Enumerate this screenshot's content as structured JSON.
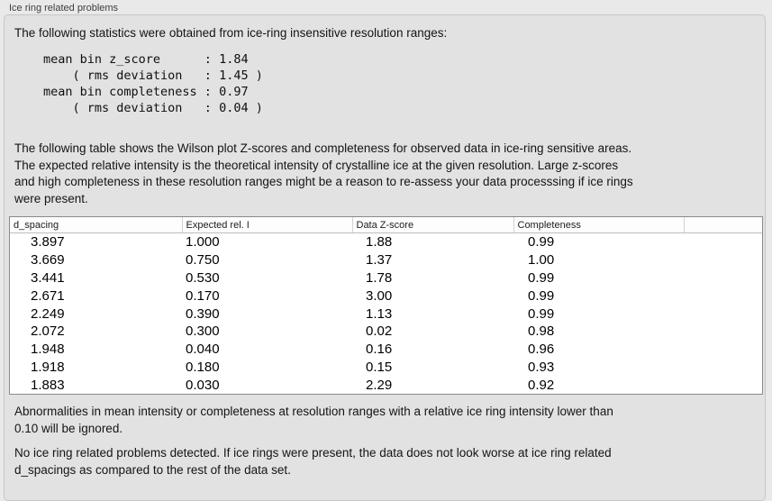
{
  "panel": {
    "title": "Ice ring related problems"
  },
  "intro_text": "The following statistics were obtained from ice-ring insensitive resolution ranges:",
  "stats_block": "mean bin z_score      : 1.84\n    ( rms deviation   : 1.45 )\nmean bin completeness : 0.97\n    ( rms deviation   : 0.04 )",
  "stats": {
    "mean_bin_z_score": "1.84",
    "z_score_rms_deviation": "1.45",
    "mean_bin_completeness": "0.97",
    "completeness_rms_deviation": "0.04"
  },
  "table_description": "The following table shows the Wilson plot Z-scores and completeness for observed data in ice-ring sensitive areas.\nThe expected relative intensity is the theoretical intensity of crystalline ice at the given resolution. Large z-scores\nand high completeness in these resolution ranges might be a reason to re-assess your data processsing if ice rings\nwere present.",
  "table": {
    "columns": [
      "d_spacing",
      "Expected rel. I",
      "Data Z-score",
      "Completeness",
      ""
    ],
    "rows": [
      [
        "3.897",
        "1.000",
        "1.88",
        "0.99"
      ],
      [
        "3.669",
        "0.750",
        "1.37",
        "1.00"
      ],
      [
        "3.441",
        "0.530",
        "1.78",
        "0.99"
      ],
      [
        "2.671",
        "0.170",
        "3.00",
        "0.99"
      ],
      [
        "2.249",
        "0.390",
        "1.13",
        "0.99"
      ],
      [
        "2.072",
        "0.300",
        "0.02",
        "0.98"
      ],
      [
        "1.948",
        "0.040",
        "0.16",
        "0.96"
      ],
      [
        "1.918",
        "0.180",
        "0.15",
        "0.93"
      ],
      [
        "1.883",
        "0.030",
        "2.29",
        "0.92"
      ]
    ]
  },
  "ignore_note": "Abnormalities in mean intensity or completeness at resolution ranges with a relative ice ring intensity lower than\n0.10 will be ignored.",
  "conclusion": "No ice ring related problems detected. If ice rings were present, the data does not look worse at ice ring related\nd_spacings as compared to the rest of the data set."
}
